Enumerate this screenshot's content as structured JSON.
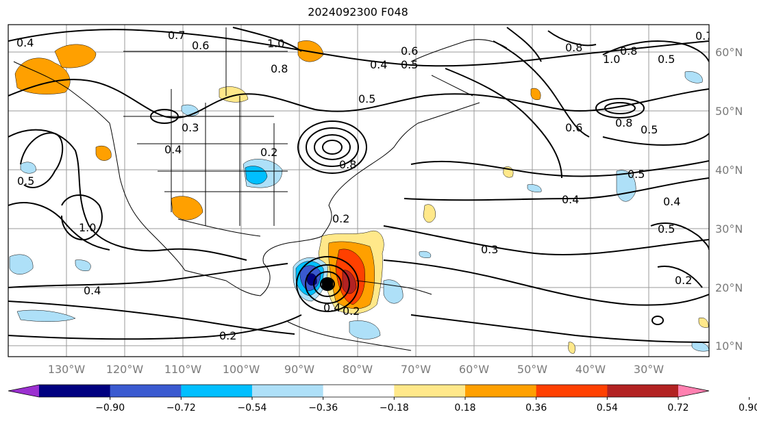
{
  "title": "2024092300 F048",
  "lat_labels": [
    "60°N",
    "50°N",
    "40°N",
    "30°N",
    "20°N",
    "10°N"
  ],
  "lon_labels": [
    "130°W",
    "120°W",
    "110°W",
    "100°W",
    "90°W",
    "80°W",
    "70°W",
    "60°W",
    "50°W",
    "40°W",
    "30°W"
  ],
  "colorbar": {
    "ticks": [
      "−0.90",
      "−0.72",
      "−0.54",
      "−0.36",
      "−0.18",
      "0.18",
      "0.36",
      "0.54",
      "0.72",
      "0.90"
    ],
    "colors": [
      "#9b30d0",
      "#000080",
      "#3a5ad0",
      "#00bfff",
      "#aee0f8",
      "#ffffff",
      "#ffe88a",
      "#ffa000",
      "#ff4000",
      "#b22222",
      "#ff80b0"
    ]
  },
  "contour_labels": [
    "0.4",
    "0.7",
    "0.6",
    "1.0",
    "0.8",
    "0.6",
    "0.4",
    "0.5",
    "0.3",
    "0.4",
    "0.2",
    "0.5",
    "1.0",
    "0.4",
    "0.2",
    "0.8",
    "0.5",
    "0.4",
    "0.3",
    "0.2",
    "0.5",
    "0.4",
    "0.2",
    "0.7",
    "0.8",
    "1.0",
    "0.8",
    "0.5",
    "0.6",
    "0.5",
    "0.8",
    "0.5",
    "0.4",
    "0.2"
  ]
}
